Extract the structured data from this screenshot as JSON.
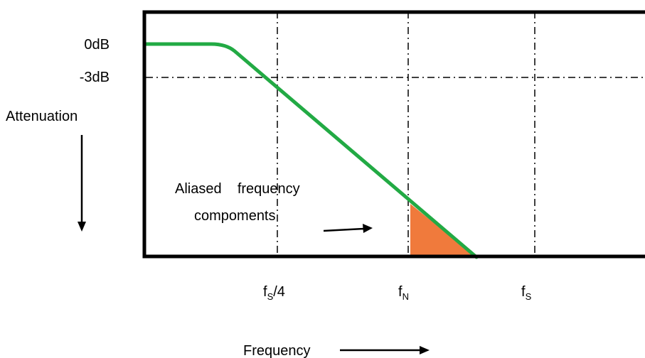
{
  "y_labels": {
    "zero_db": "0dB",
    "minus3_db": "-3dB",
    "attenuation": "Attenuation"
  },
  "annotation": {
    "line1": "Aliased    frequency",
    "line2": "compoments"
  },
  "x_labels": {
    "fs_quarter": {
      "base": "f",
      "sub": "S",
      "suffix": "/4"
    },
    "f_nyquist": {
      "base": "f",
      "sub": "N"
    },
    "f_sample": {
      "base": "f",
      "sub": "S"
    }
  },
  "x_axis_title": "Frequency",
  "colors": {
    "curve": "#22aa44",
    "aliased_fill": "#f07a3c",
    "frame": "#000000",
    "grid": "#000000"
  }
}
